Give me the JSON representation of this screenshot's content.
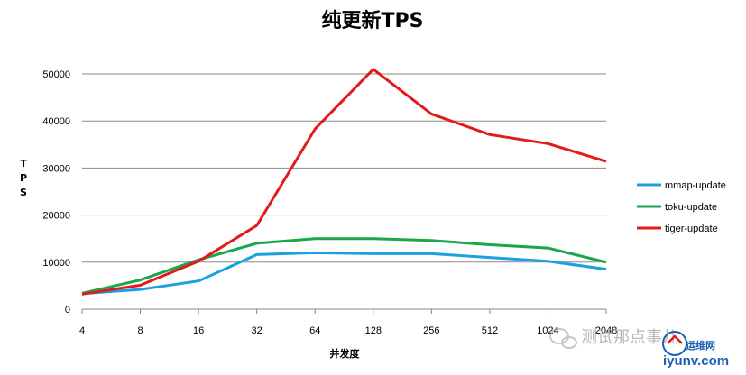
{
  "chart_data": {
    "type": "line",
    "title": "纯更新TPS",
    "xlabel": "并发度",
    "ylabel": "TPS",
    "categories": [
      "4",
      "8",
      "16",
      "32",
      "64",
      "128",
      "256",
      "512",
      "1024",
      "2048"
    ],
    "ylim": [
      0,
      50000
    ],
    "yticks": [
      0,
      10000,
      20000,
      30000,
      40000,
      50000
    ],
    "grid": true,
    "legend_position": "right",
    "series": [
      {
        "name": "mmap-update",
        "color": "#1ca0e0",
        "values": [
          3300,
          4200,
          6000,
          11600,
          12000,
          11800,
          11800,
          11000,
          10200,
          8500
        ]
      },
      {
        "name": "toku-update",
        "color": "#1aa64a",
        "values": [
          3400,
          6200,
          10500,
          14000,
          15000,
          15000,
          14600,
          13700,
          13000,
          10000
        ]
      },
      {
        "name": "tiger-update",
        "color": "#e41a1a",
        "values": [
          3200,
          5100,
          10200,
          17800,
          38300,
          51000,
          41500,
          37100,
          35200,
          31400
        ]
      }
    ]
  },
  "watermark": {
    "text": "测试那点事儿",
    "site": "iyunv.com",
    "site_cn": "运维网"
  }
}
